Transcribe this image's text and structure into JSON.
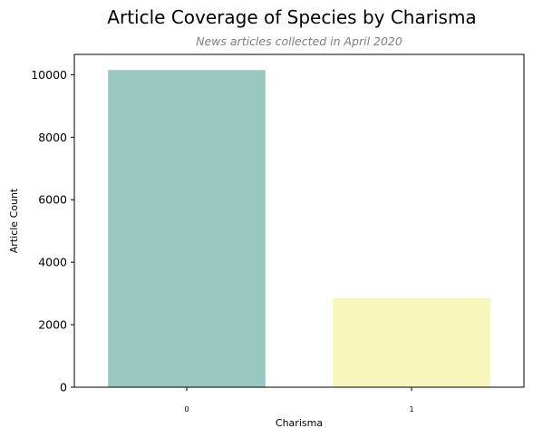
{
  "chart_data": {
    "type": "bar",
    "title": "Article Coverage of Species by Charisma",
    "subtitle": "News articles collected in April 2020",
    "xlabel": "Charisma",
    "ylabel": "Article Count",
    "categories": [
      "0",
      "1"
    ],
    "values": [
      10150,
      2850
    ],
    "colors": [
      "#99c8c1",
      "#f7f6bb"
    ],
    "ylim": [
      0,
      10650
    ],
    "yticks": [
      0,
      2000,
      4000,
      6000,
      8000,
      10000
    ],
    "ytick_labels": [
      "0",
      "2000",
      "4000",
      "6000",
      "8000",
      "10000"
    ],
    "grid": false,
    "legend": "none"
  }
}
